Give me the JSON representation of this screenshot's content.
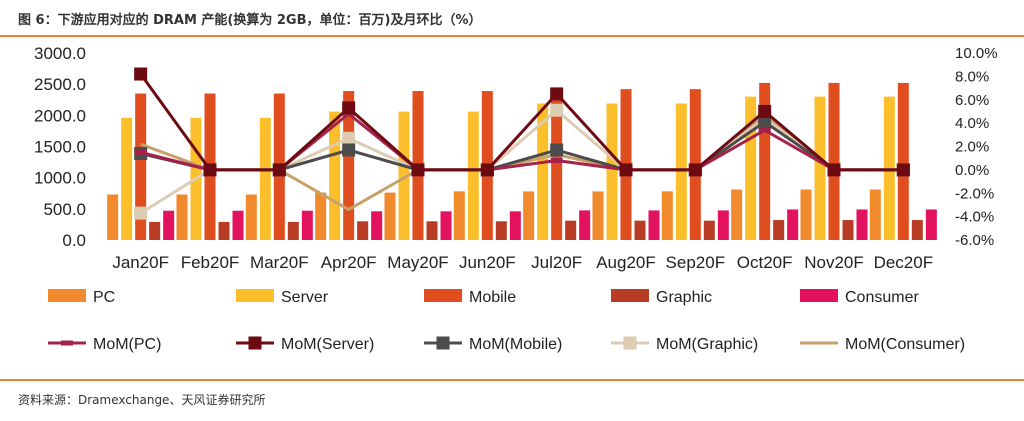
{
  "title": "图 6：下游应用对应的 DRAM 产能(换算为 2GB，单位：百万)及月环比（%）",
  "source": "资料来源：Dramexchange、天风证券研究所",
  "chart_data": {
    "type": "bar",
    "categories": [
      "Jan20F",
      "Feb20F",
      "Mar20F",
      "Apr20F",
      "May20F",
      "Jun20F",
      "Jul20F",
      "Aug20F",
      "Sep20F",
      "Oct20F",
      "Nov20F",
      "Dec20F"
    ],
    "y_left": {
      "min": 0,
      "max": 3000,
      "step": 500,
      "tick_labels": [
        "0.0",
        "500.0",
        "1000.0",
        "1500.0",
        "2000.0",
        "2500.0",
        "3000.0"
      ]
    },
    "y_right": {
      "min": -6,
      "max": 10,
      "step": 2,
      "tick_labels": [
        "-6.0%",
        "-4.0%",
        "-2.0%",
        "0.0%",
        "2.0%",
        "4.0%",
        "6.0%",
        "8.0%",
        "10.0%"
      ]
    },
    "grid": false,
    "legend_position": "bottom",
    "series": [
      {
        "name": "PC",
        "kind": "bar",
        "axis": "left",
        "color": "#F08A2C",
        "values": [
          730,
          730,
          730,
          760,
          760,
          780,
          780,
          780,
          780,
          810,
          810,
          810
        ]
      },
      {
        "name": "Server",
        "kind": "bar",
        "axis": "left",
        "color": "#FBBF2C",
        "values": [
          1960,
          1960,
          1960,
          2060,
          2060,
          2060,
          2190,
          2190,
          2190,
          2300,
          2300,
          2300
        ]
      },
      {
        "name": "Mobile",
        "kind": "bar",
        "axis": "left",
        "color": "#E04E20",
        "values": [
          2350,
          2350,
          2350,
          2390,
          2390,
          2390,
          2420,
          2420,
          2420,
          2520,
          2520,
          2520
        ]
      },
      {
        "name": "Graphic",
        "kind": "bar",
        "axis": "left",
        "color": "#B83C23",
        "values": [
          290,
          290,
          290,
          300,
          300,
          300,
          310,
          310,
          310,
          320,
          320,
          320
        ]
      },
      {
        "name": "Consumer",
        "kind": "bar",
        "axis": "left",
        "color": "#E2125E",
        "values": [
          470,
          470,
          470,
          460,
          460,
          460,
          475,
          475,
          475,
          490,
          490,
          490
        ]
      },
      {
        "name": "MoM(PC)",
        "kind": "line",
        "axis": "right",
        "color": "#A6224A",
        "marker": "dash",
        "values": [
          1.5,
          0,
          0,
          4.8,
          0,
          0,
          0.8,
          0,
          0,
          3.4,
          0,
          0
        ]
      },
      {
        "name": "MoM(Server)",
        "kind": "line",
        "axis": "right",
        "color": "#6E0A12",
        "marker": "square",
        "values": [
          8.2,
          0,
          0,
          5.3,
          0,
          0,
          6.5,
          0,
          0,
          5.0,
          0,
          0
        ]
      },
      {
        "name": "MoM(Mobile)",
        "kind": "line",
        "axis": "right",
        "color": "#4C4C4C",
        "marker": "square",
        "values": [
          1.4,
          0,
          0,
          1.7,
          0,
          0,
          1.7,
          0,
          0,
          4.1,
          0,
          0
        ]
      },
      {
        "name": "MoM(Graphic)",
        "kind": "line",
        "axis": "right",
        "color": "#DCCCB2",
        "marker": "square",
        "values": [
          -3.7,
          0,
          0,
          2.7,
          0,
          0,
          5.1,
          0,
          0,
          4.4,
          0,
          0
        ]
      },
      {
        "name": "MoM(Consumer)",
        "kind": "line",
        "axis": "right",
        "color": "#C7A06A",
        "marker": "none",
        "values": [
          2.2,
          0,
          0,
          -3.4,
          0,
          0,
          1.3,
          0,
          0,
          4.6,
          0,
          0
        ]
      }
    ]
  }
}
